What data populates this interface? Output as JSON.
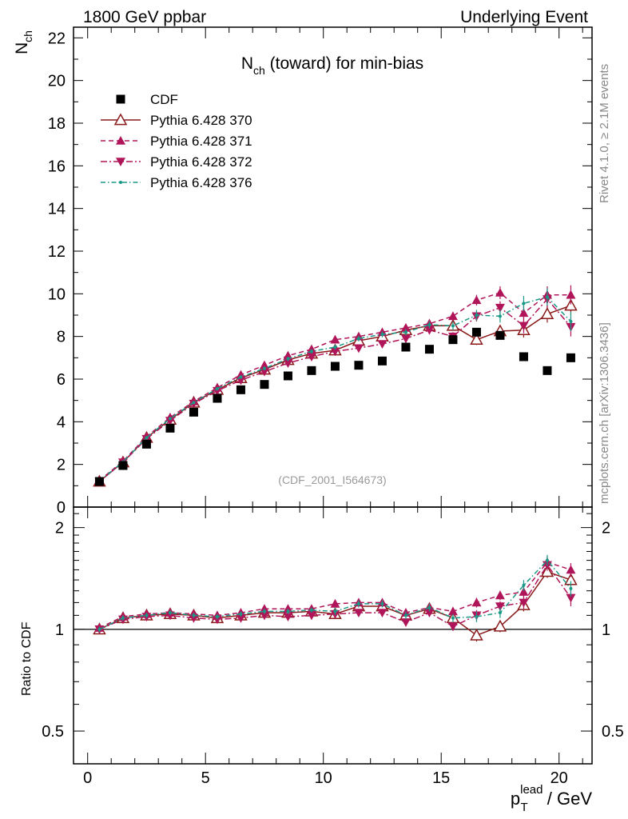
{
  "header": {
    "left": "1800 GeV ppbar",
    "right": "Underlying Event"
  },
  "side_text": {
    "upper": "Rivet 4.1.0, ≥ 2.1M events",
    "lower": "mcplots.cern.ch [arXiv:1306.3436]"
  },
  "chart_data": [
    {
      "type": "scatter",
      "panel": "main",
      "title_main": "N",
      "title_sub": "ch",
      "title_rest": " (toward) for min-bias",
      "ylabel_main": "N",
      "ylabel_sub": "ch",
      "analysis_label": "(CDF_2001_I564673)",
      "xlim": [
        -0.6,
        21.4
      ],
      "ylim": [
        0,
        22.5
      ],
      "yticks": [
        0,
        2,
        4,
        6,
        8,
        10,
        12,
        14,
        16,
        18,
        20,
        22
      ],
      "ytick_labels": [
        "0",
        "2",
        "4",
        "6",
        "8",
        "10",
        "12",
        "14",
        "16",
        "18",
        "20",
        "22"
      ],
      "x": [
        0.5,
        1.5,
        2.5,
        3.5,
        4.5,
        5.5,
        6.5,
        7.5,
        8.5,
        9.5,
        10.5,
        11.5,
        12.5,
        13.5,
        14.5,
        15.5,
        16.5,
        17.5,
        18.5,
        19.5,
        20.5
      ],
      "series": [
        {
          "name": "CDF",
          "color": "#000000",
          "style": "data",
          "values": [
            1.2,
            1.95,
            2.95,
            3.7,
            4.45,
            5.1,
            5.5,
            5.75,
            6.15,
            6.4,
            6.6,
            6.65,
            6.85,
            7.5,
            7.4,
            7.85,
            8.2,
            8.05,
            7.05,
            6.4,
            7.0
          ],
          "errors": [
            0.03,
            0.05,
            0.06,
            0.07,
            0.08,
            0.08,
            0.09,
            0.09,
            0.1,
            0.1,
            0.1,
            0.11,
            0.11,
            0.12,
            0.12,
            0.13,
            0.14,
            0.15,
            0.16,
            0.18,
            0.2
          ]
        },
        {
          "name": "Pythia 6.428 370",
          "color": "#8b1a1a",
          "style": "solid-open-up",
          "values": [
            1.2,
            2.1,
            3.25,
            4.1,
            4.9,
            5.5,
            6.05,
            6.45,
            6.9,
            7.2,
            7.35,
            7.8,
            8.0,
            8.3,
            8.5,
            8.5,
            7.85,
            8.25,
            8.3,
            9.05,
            9.45
          ],
          "errors": [
            0.02,
            0.03,
            0.04,
            0.05,
            0.06,
            0.07,
            0.08,
            0.09,
            0.1,
            0.11,
            0.12,
            0.13,
            0.14,
            0.15,
            0.17,
            0.2,
            0.25,
            0.3,
            0.35,
            0.4,
            0.45
          ]
        },
        {
          "name": "Pythia 6.428 371",
          "color": "#b0155a",
          "style": "dash-up",
          "values": [
            1.25,
            2.15,
            3.3,
            4.2,
            4.95,
            5.6,
            6.2,
            6.65,
            7.1,
            7.4,
            7.85,
            8.0,
            8.2,
            8.4,
            8.6,
            8.95,
            9.7,
            10.05,
            9.1,
            9.95,
            9.95
          ],
          "errors": [
            0.02,
            0.03,
            0.04,
            0.05,
            0.06,
            0.07,
            0.08,
            0.09,
            0.1,
            0.11,
            0.12,
            0.13,
            0.14,
            0.15,
            0.17,
            0.2,
            0.25,
            0.3,
            0.35,
            0.4,
            0.45
          ]
        },
        {
          "name": "Pythia 6.428 372",
          "color": "#b0155a",
          "style": "dashdot-down",
          "values": [
            1.2,
            2.1,
            3.2,
            4.05,
            4.85,
            5.45,
            5.95,
            6.35,
            6.75,
            7.05,
            7.3,
            7.45,
            7.65,
            7.9,
            8.3,
            8.0,
            8.95,
            9.35,
            8.5,
            9.75,
            8.45
          ],
          "errors": [
            0.02,
            0.03,
            0.04,
            0.05,
            0.06,
            0.07,
            0.08,
            0.09,
            0.1,
            0.11,
            0.12,
            0.13,
            0.14,
            0.15,
            0.17,
            0.2,
            0.25,
            0.3,
            0.35,
            0.4,
            0.45
          ]
        },
        {
          "name": "Pythia 6.428 376",
          "color": "#1a9a86",
          "style": "dashdot-dot",
          "values": [
            1.22,
            2.12,
            3.25,
            4.15,
            4.9,
            5.55,
            6.1,
            6.5,
            6.95,
            7.3,
            7.5,
            7.9,
            8.1,
            8.2,
            8.55,
            8.5,
            9.0,
            8.95,
            9.55,
            9.85,
            8.7
          ],
          "errors": [
            0.02,
            0.03,
            0.04,
            0.05,
            0.06,
            0.07,
            0.08,
            0.09,
            0.1,
            0.11,
            0.12,
            0.13,
            0.14,
            0.15,
            0.17,
            0.2,
            0.25,
            0.3,
            0.35,
            0.4,
            0.45
          ]
        }
      ]
    },
    {
      "type": "scatter",
      "panel": "ratio",
      "ylabel": "Ratio to CDF",
      "xlabel_main": "p",
      "xlabel_sub": "T",
      "xlabel_sup": "lead",
      "xlabel_rest": " / GeV",
      "xlim": [
        -0.6,
        21.4
      ],
      "ylim": [
        0.4,
        2.3
      ],
      "yscale": "log",
      "yticks": [
        0.5,
        1,
        2
      ],
      "ytick_labels": [
        "0.5",
        "1",
        "2"
      ],
      "xticks": [
        0,
        5,
        10,
        15,
        20
      ],
      "xtick_labels": [
        "0",
        "5",
        "10",
        "15",
        "20"
      ],
      "x": [
        0.5,
        1.5,
        2.5,
        3.5,
        4.5,
        5.5,
        6.5,
        7.5,
        8.5,
        9.5,
        10.5,
        11.5,
        12.5,
        13.5,
        14.5,
        15.5,
        16.5,
        17.5,
        18.5,
        19.5,
        20.5
      ],
      "series": [
        {
          "name": "Pythia 6.428 370",
          "values": [
            1.0,
            1.08,
            1.1,
            1.11,
            1.1,
            1.08,
            1.1,
            1.12,
            1.12,
            1.13,
            1.11,
            1.17,
            1.17,
            1.1,
            1.15,
            1.08,
            0.96,
            1.02,
            1.18,
            1.48,
            1.4
          ],
          "errors": [
            0.02,
            0.02,
            0.02,
            0.02,
            0.02,
            0.02,
            0.02,
            0.02,
            0.02,
            0.02,
            0.03,
            0.03,
            0.03,
            0.03,
            0.03,
            0.03,
            0.04,
            0.04,
            0.05,
            0.06,
            0.07
          ]
        },
        {
          "name": "Pythia 6.428 371",
          "values": [
            1.01,
            1.09,
            1.11,
            1.12,
            1.11,
            1.1,
            1.12,
            1.15,
            1.15,
            1.15,
            1.19,
            1.2,
            1.2,
            1.12,
            1.16,
            1.13,
            1.2,
            1.26,
            1.29,
            1.58,
            1.5
          ],
          "errors": [
            0.02,
            0.02,
            0.02,
            0.02,
            0.02,
            0.02,
            0.02,
            0.02,
            0.02,
            0.02,
            0.03,
            0.03,
            0.03,
            0.03,
            0.03,
            0.03,
            0.04,
            0.04,
            0.05,
            0.06,
            0.07
          ]
        },
        {
          "name": "Pythia 6.428 372",
          "values": [
            1.0,
            1.07,
            1.09,
            1.1,
            1.08,
            1.07,
            1.08,
            1.1,
            1.09,
            1.1,
            1.11,
            1.12,
            1.12,
            1.05,
            1.12,
            1.02,
            1.1,
            1.17,
            1.2,
            1.55,
            1.24
          ],
          "errors": [
            0.02,
            0.02,
            0.02,
            0.02,
            0.02,
            0.02,
            0.02,
            0.02,
            0.02,
            0.02,
            0.03,
            0.03,
            0.03,
            0.03,
            0.03,
            0.03,
            0.04,
            0.04,
            0.05,
            0.06,
            0.07
          ]
        },
        {
          "name": "Pythia 6.428 376",
          "values": [
            1.0,
            1.08,
            1.1,
            1.12,
            1.1,
            1.09,
            1.11,
            1.13,
            1.13,
            1.14,
            1.13,
            1.19,
            1.19,
            1.1,
            1.16,
            1.08,
            1.09,
            1.12,
            1.35,
            1.6,
            1.32
          ],
          "errors": [
            0.02,
            0.02,
            0.02,
            0.02,
            0.02,
            0.02,
            0.02,
            0.02,
            0.02,
            0.02,
            0.03,
            0.03,
            0.03,
            0.03,
            0.03,
            0.03,
            0.04,
            0.04,
            0.05,
            0.06,
            0.07
          ]
        }
      ]
    }
  ]
}
